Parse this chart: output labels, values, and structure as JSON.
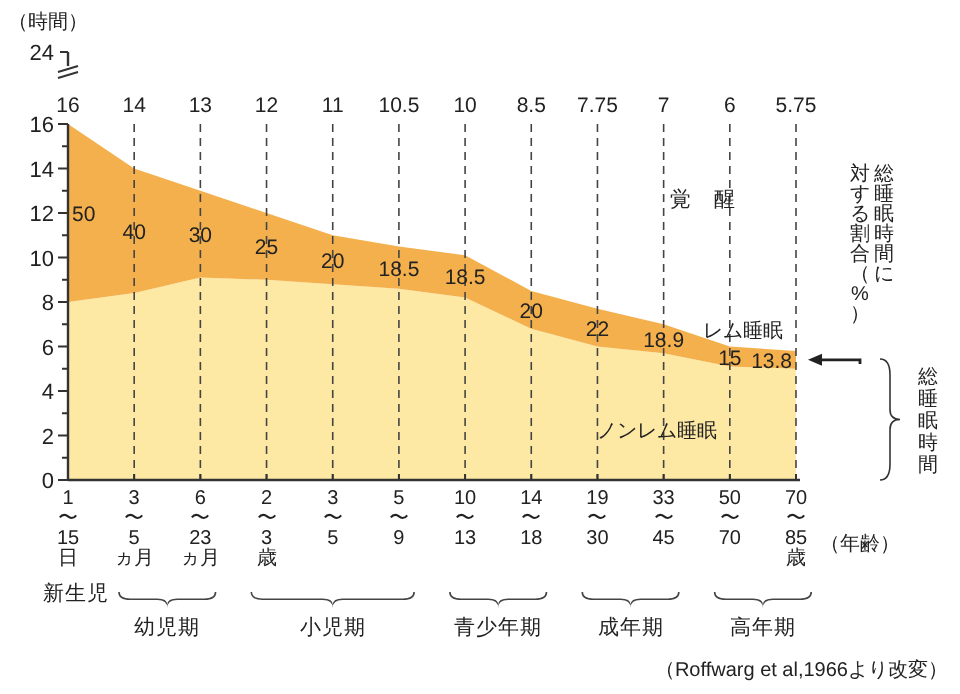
{
  "chart_data": {
    "type": "area",
    "stacked": true,
    "ylabel": "（時間）",
    "xlabel": "（年齢）",
    "categories": [
      "1\n〜\n15\n日",
      "3\n〜\n5\nヵ月",
      "6\n〜\n23\nヵ月",
      "2\n〜\n3\n歳",
      "3\n〜\n5",
      "5\n〜\n9",
      "10\n〜\n13",
      "14\n〜\n18",
      "19\n〜\n30",
      "33\n〜\n45",
      "50\n〜\n70",
      "70\n〜\n85\n歳"
    ],
    "series": [
      {
        "name": "ノンレム睡眠",
        "color": "#fde8a4",
        "values": [
          8,
          8.4,
          9.1,
          9,
          8.8,
          8.6,
          8.2,
          6.8,
          6,
          5.7,
          5.1,
          5
        ]
      },
      {
        "name": "レム睡眠",
        "color": "#f4b04c",
        "values": [
          8,
          5.6,
          3.9,
          3,
          2.2,
          1.9,
          1.9,
          1.7,
          1.7,
          1.3,
          0.9,
          0.8
        ]
      }
    ],
    "ylim": [
      0,
      16
    ],
    "yticks": [
      0,
      {
        "value": 1,
        "label": null
      },
      2,
      {
        "value": 3,
        "label": null
      },
      4,
      {
        "value": 5,
        "label": null
      },
      6,
      {
        "value": 7,
        "label": null
      },
      8,
      {
        "value": 9,
        "label": null
      },
      10,
      {
        "value": 11,
        "label": null
      },
      12,
      {
        "value": 13,
        "label": null
      },
      14,
      {
        "value": 15,
        "label": null
      },
      16
    ],
    "grid": "x",
    "line_style": "dashed",
    "annotations": [
      "覚　醒",
      "総睡眠時間に",
      "総睡眠時間",
      "24",
      "新生児",
      "幼児期",
      "小児期",
      "青少年期",
      "成年期",
      "高年期",
      "（Roffwarg et al,1966より改変）",
      "16",
      "14",
      "13",
      "12",
      "11",
      "10.5",
      "10",
      "8.5",
      "7.75",
      "7",
      "6",
      "5.75",
      "50",
      "40",
      "30",
      "25",
      "20",
      "18.5",
      "18.5",
      "20",
      "22",
      "18.9",
      "15",
      "13.8",
      "対する割合（%）"
    ]
  }
}
